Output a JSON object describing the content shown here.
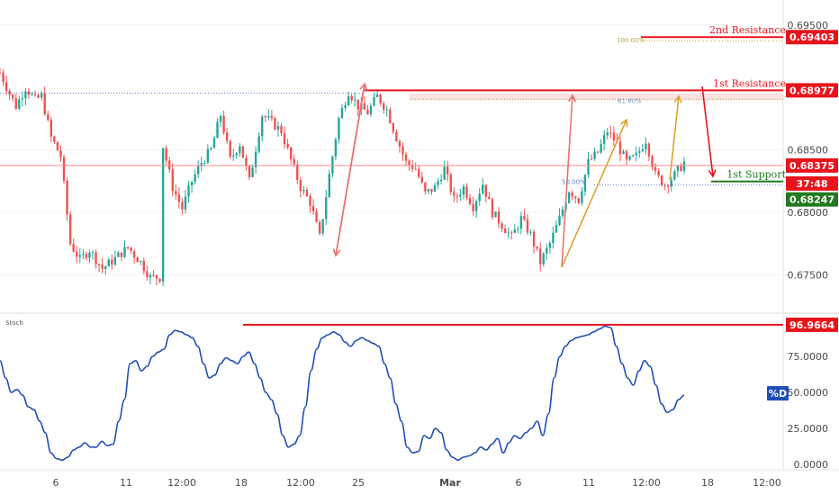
{
  "chart_data": [
    {
      "type": "candlestick",
      "pane": "price",
      "ylim": [
        0.672,
        0.697
      ],
      "y_ticks": [
        "0.69500",
        "0.68500",
        "0.68000",
        "0.67500"
      ],
      "x_ticks": [
        "6",
        "11",
        "12:00",
        "18",
        "12:00",
        "25",
        "Mar",
        "6",
        "11",
        "12:00",
        "18",
        "12:00"
      ],
      "series": [
        {
          "kind": "ohlc-path",
          "points": [
            {
              "i": 0,
              "y": 0.6912
            },
            {
              "i": 3,
              "y": 0.6895
            },
            {
              "i": 5,
              "y": 0.6885
            },
            {
              "i": 8,
              "y": 0.69
            },
            {
              "i": 11,
              "y": 0.689
            },
            {
              "i": 13,
              "y": 0.6893
            },
            {
              "i": 16,
              "y": 0.686
            },
            {
              "i": 19,
              "y": 0.6845
            },
            {
              "i": 22,
              "y": 0.6775
            },
            {
              "i": 25,
              "y": 0.6762
            },
            {
              "i": 28,
              "y": 0.677
            },
            {
              "i": 32,
              "y": 0.6755
            },
            {
              "i": 36,
              "y": 0.6763
            },
            {
              "i": 40,
              "y": 0.6772
            },
            {
              "i": 44,
              "y": 0.676
            },
            {
              "i": 47,
              "y": 0.6748
            },
            {
              "i": 50,
              "y": 0.6748
            },
            {
              "i": 51,
              "y": 0.6853
            },
            {
              "i": 54,
              "y": 0.682
            },
            {
              "i": 57,
              "y": 0.6803
            },
            {
              "i": 60,
              "y": 0.6825
            },
            {
              "i": 63,
              "y": 0.684
            },
            {
              "i": 66,
              "y": 0.685
            },
            {
              "i": 69,
              "y": 0.6878
            },
            {
              "i": 72,
              "y": 0.6842
            },
            {
              "i": 75,
              "y": 0.6855
            },
            {
              "i": 78,
              "y": 0.6825
            },
            {
              "i": 82,
              "y": 0.6878
            },
            {
              "i": 85,
              "y": 0.6872
            },
            {
              "i": 88,
              "y": 0.6865
            },
            {
              "i": 91,
              "y": 0.6842
            },
            {
              "i": 94,
              "y": 0.682
            },
            {
              "i": 97,
              "y": 0.6808
            },
            {
              "i": 100,
              "y": 0.678
            },
            {
              "i": 103,
              "y": 0.683
            },
            {
              "i": 106,
              "y": 0.6875
            },
            {
              "i": 109,
              "y": 0.6897
            },
            {
              "i": 112,
              "y": 0.6885
            },
            {
              "i": 115,
              "y": 0.688
            },
            {
              "i": 118,
              "y": 0.6893
            },
            {
              "i": 121,
              "y": 0.6882
            },
            {
              "i": 124,
              "y": 0.686
            },
            {
              "i": 127,
              "y": 0.684
            },
            {
              "i": 130,
              "y": 0.6835
            },
            {
              "i": 133,
              "y": 0.6815
            },
            {
              "i": 136,
              "y": 0.682
            },
            {
              "i": 139,
              "y": 0.6835
            },
            {
              "i": 142,
              "y": 0.681
            },
            {
              "i": 145,
              "y": 0.682
            },
            {
              "i": 148,
              "y": 0.6805
            },
            {
              "i": 151,
              "y": 0.6823
            },
            {
              "i": 154,
              "y": 0.68
            },
            {
              "i": 157,
              "y": 0.679
            },
            {
              "i": 160,
              "y": 0.678
            },
            {
              "i": 163,
              "y": 0.6795
            },
            {
              "i": 166,
              "y": 0.6782
            },
            {
              "i": 169,
              "y": 0.676
            },
            {
              "i": 172,
              "y": 0.6775
            },
            {
              "i": 175,
              "y": 0.6795
            },
            {
              "i": 178,
              "y": 0.6818
            },
            {
              "i": 181,
              "y": 0.681
            },
            {
              "i": 184,
              "y": 0.684
            },
            {
              "i": 187,
              "y": 0.6848
            },
            {
              "i": 190,
              "y": 0.6865
            },
            {
              "i": 193,
              "y": 0.6855
            },
            {
              "i": 196,
              "y": 0.684
            },
            {
              "i": 199,
              "y": 0.6845
            },
            {
              "i": 202,
              "y": 0.6858
            },
            {
              "i": 205,
              "y": 0.683
            },
            {
              "i": 208,
              "y": 0.6822
            },
            {
              "i": 211,
              "y": 0.683
            },
            {
              "i": 214,
              "y": 0.684
            }
          ]
        }
      ],
      "levels": [
        {
          "label": "2nd Resistance",
          "value": "0.69403",
          "color": "#e8141c"
        },
        {
          "label": "1st Resistance",
          "value": "0.68977",
          "color": "#e8141c"
        },
        {
          "label": "1st Support",
          "value": "0.68247",
          "color": "#217a1f"
        }
      ],
      "fib_labels": [
        "100.00%",
        "61.80%",
        "50.00%"
      ],
      "current_price": {
        "value": "0.68375",
        "countdown": "37:48",
        "color": "#e8141c"
      }
    },
    {
      "type": "line",
      "pane": "oscillator",
      "title": "Stoch",
      "ylim": [
        0,
        100
      ],
      "y_ticks": [
        "75.0000",
        "50.0000",
        "25.0000",
        "0.0000"
      ],
      "series": [
        {
          "name": "%D",
          "color": "#1f4fb5",
          "values": [
            72,
            60,
            50,
            52,
            48,
            40,
            38,
            30,
            22,
            8,
            4,
            3,
            5,
            10,
            12,
            15,
            12,
            12,
            16,
            13,
            14,
            30,
            45,
            70,
            72,
            65,
            68,
            75,
            78,
            80,
            90,
            93,
            92,
            90,
            88,
            82,
            70,
            60,
            62,
            70,
            74,
            72,
            70,
            75,
            78,
            70,
            60,
            50,
            45,
            35,
            20,
            12,
            14,
            20,
            40,
            65,
            80,
            88,
            90,
            92,
            90,
            85,
            82,
            86,
            88,
            86,
            84,
            82,
            70,
            60,
            42,
            30,
            12,
            8,
            9,
            20,
            18,
            25,
            22,
            10,
            5,
            3,
            5,
            6,
            8,
            12,
            10,
            14,
            18,
            8,
            15,
            20,
            18,
            22,
            25,
            30,
            20,
            35,
            60,
            75,
            82,
            86,
            88,
            89,
            90,
            92,
            94,
            96,
            95,
            82,
            70,
            60,
            55,
            65,
            72,
            68,
            55,
            42,
            36,
            38,
            45,
            48
          ]
        }
      ],
      "levels": [
        {
          "value": "96.9664",
          "color": "#e8141c"
        }
      ]
    }
  ]
}
